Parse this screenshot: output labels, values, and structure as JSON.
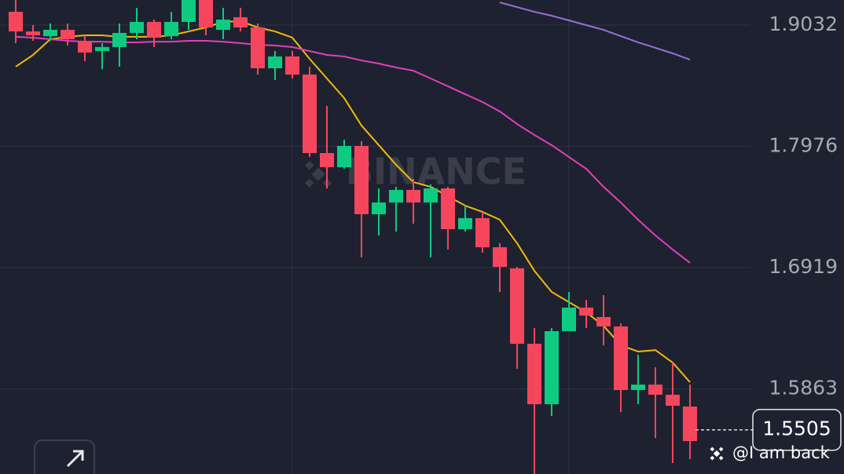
{
  "chart_data": {
    "type": "candlestick",
    "watermark": "BINANCE",
    "caption": "@I am back",
    "current_price": 1.5505,
    "ylim": [
      1.512,
      1.9251
    ],
    "yticks": [
      1.9032,
      1.7976,
      1.6919,
      1.5863
    ],
    "grid": true,
    "up_color": "#0ecb81",
    "down_color": "#f6465d",
    "candles": [
      {
        "open": 1.9148,
        "high": 1.9251,
        "low": 1.8875,
        "close": 1.8977
      },
      {
        "open": 1.8977,
        "high": 1.9032,
        "low": 1.8895,
        "close": 1.8943
      },
      {
        "open": 1.8936,
        "high": 1.9046,
        "low": 1.8895,
        "close": 1.8991
      },
      {
        "open": 1.8991,
        "high": 1.9046,
        "low": 1.8854,
        "close": 1.8909
      },
      {
        "open": 1.8895,
        "high": 1.8943,
        "low": 1.8718,
        "close": 1.8793
      },
      {
        "open": 1.8806,
        "high": 1.8875,
        "low": 1.8649,
        "close": 1.8841
      },
      {
        "open": 1.8841,
        "high": 1.9046,
        "low": 1.867,
        "close": 1.8964
      },
      {
        "open": 1.8964,
        "high": 1.9183,
        "low": 1.8909,
        "close": 1.906
      },
      {
        "open": 1.906,
        "high": 1.908,
        "low": 1.8841,
        "close": 1.8923
      },
      {
        "open": 1.8936,
        "high": 1.9148,
        "low": 1.8909,
        "close": 1.906
      },
      {
        "open": 1.906,
        "high": 1.9251,
        "low": 1.8991,
        "close": 1.9251
      },
      {
        "open": 1.9251,
        "high": 1.9251,
        "low": 1.8943,
        "close": 1.9012
      },
      {
        "open": 1.8991,
        "high": 1.9183,
        "low": 1.8909,
        "close": 1.908
      },
      {
        "open": 1.9101,
        "high": 1.9183,
        "low": 1.8977,
        "close": 1.9012
      },
      {
        "open": 1.9012,
        "high": 1.9046,
        "low": 1.8601,
        "close": 1.8656
      },
      {
        "open": 1.8656,
        "high": 1.8806,
        "low": 1.8553,
        "close": 1.8759
      },
      {
        "open": 1.8759,
        "high": 1.8806,
        "low": 1.8567,
        "close": 1.8601
      },
      {
        "open": 1.8601,
        "high": 1.867,
        "low": 1.7883,
        "close": 1.7917
      },
      {
        "open": 1.7917,
        "high": 1.8328,
        "low": 1.7609,
        "close": 1.7794
      },
      {
        "open": 1.7794,
        "high": 1.8034,
        "low": 1.778,
        "close": 1.7979
      },
      {
        "open": 1.7979,
        "high": 1.802,
        "low": 1.7008,
        "close": 1.7384
      },
      {
        "open": 1.7384,
        "high": 1.7609,
        "low": 1.7199,
        "close": 1.7486
      },
      {
        "open": 1.7486,
        "high": 1.7623,
        "low": 1.7233,
        "close": 1.7596
      },
      {
        "open": 1.7596,
        "high": 1.7692,
        "low": 1.7302,
        "close": 1.7486
      },
      {
        "open": 1.7486,
        "high": 1.7644,
        "low": 1.7008,
        "close": 1.7609
      },
      {
        "open": 1.7609,
        "high": 1.7623,
        "low": 1.7076,
        "close": 1.7254
      },
      {
        "open": 1.7254,
        "high": 1.7459,
        "low": 1.7233,
        "close": 1.735
      },
      {
        "open": 1.735,
        "high": 1.7404,
        "low": 1.7049,
        "close": 1.7096
      },
      {
        "open": 1.7096,
        "high": 1.7131,
        "low": 1.6707,
        "close": 1.6925
      },
      {
        "open": 1.6912,
        "high": 1.6925,
        "low": 1.6036,
        "close": 1.6255
      },
      {
        "open": 1.6255,
        "high": 1.6392,
        "low": 1.512,
        "close": 1.5728
      },
      {
        "open": 1.5728,
        "high": 1.6392,
        "low": 1.5626,
        "close": 1.6365
      },
      {
        "open": 1.6365,
        "high": 1.6707,
        "low": 1.6365,
        "close": 1.657
      },
      {
        "open": 1.657,
        "high": 1.6638,
        "low": 1.6392,
        "close": 1.6501
      },
      {
        "open": 1.6488,
        "high": 1.6679,
        "low": 1.6241,
        "close": 1.6406
      },
      {
        "open": 1.6406,
        "high": 1.6433,
        "low": 1.566,
        "close": 1.5852
      },
      {
        "open": 1.5852,
        "high": 1.6159,
        "low": 1.5728,
        "close": 1.5899
      },
      {
        "open": 1.5899,
        "high": 1.605,
        "low": 1.5434,
        "close": 1.5811
      },
      {
        "open": 1.5811,
        "high": 1.6091,
        "low": 1.5215,
        "close": 1.5715
      },
      {
        "open": 1.5708,
        "high": 1.5899,
        "low": 1.525,
        "close": 1.5407
      }
    ],
    "moving_averages": [
      {
        "color": "#f0b90b",
        "values": [
          1.867,
          1.8772,
          1.8909,
          1.893,
          1.8943,
          1.8943,
          1.893,
          1.893,
          1.893,
          1.8943,
          1.8977,
          1.9012,
          1.906,
          1.9066,
          1.9012,
          1.8977,
          1.8923,
          1.8738,
          1.8567,
          1.8396,
          1.8157,
          1.7986,
          1.7815,
          1.7664,
          1.7623,
          1.7541,
          1.7459,
          1.7404,
          1.7336,
          1.7131,
          1.6891,
          1.6707,
          1.6618,
          1.6529,
          1.6412,
          1.6241,
          1.6187,
          1.62,
          1.6091,
          1.592
        ]
      },
      {
        "color": "#e040b8",
        "values": [
          1.893,
          1.8923,
          1.8909,
          1.8895,
          1.8888,
          1.8888,
          1.8882,
          1.8882,
          1.8888,
          1.8888,
          1.8895,
          1.8895,
          1.8888,
          1.8875,
          1.8861,
          1.8854,
          1.8841,
          1.8806,
          1.8772,
          1.8759,
          1.8724,
          1.8697,
          1.8663,
          1.8635,
          1.8567,
          1.8499,
          1.843,
          1.8362,
          1.828,
          1.817,
          1.8075,
          1.7986,
          1.7883,
          1.778,
          1.7623,
          1.7486,
          1.7336,
          1.7199,
          1.7076,
          1.696
        ]
      },
      {
        "color": "#9a6fd6",
        "values": [
          null,
          null,
          null,
          null,
          null,
          null,
          null,
          null,
          null,
          null,
          null,
          null,
          null,
          null,
          null,
          null,
          null,
          null,
          null,
          null,
          null,
          null,
          null,
          null,
          null,
          null,
          null,
          null,
          1.923,
          1.9189,
          1.9148,
          1.9114,
          1.9073,
          1.9032,
          1.8991,
          1.8936,
          1.8882,
          1.8834,
          1.8786,
          1.8731
        ]
      }
    ]
  }
}
